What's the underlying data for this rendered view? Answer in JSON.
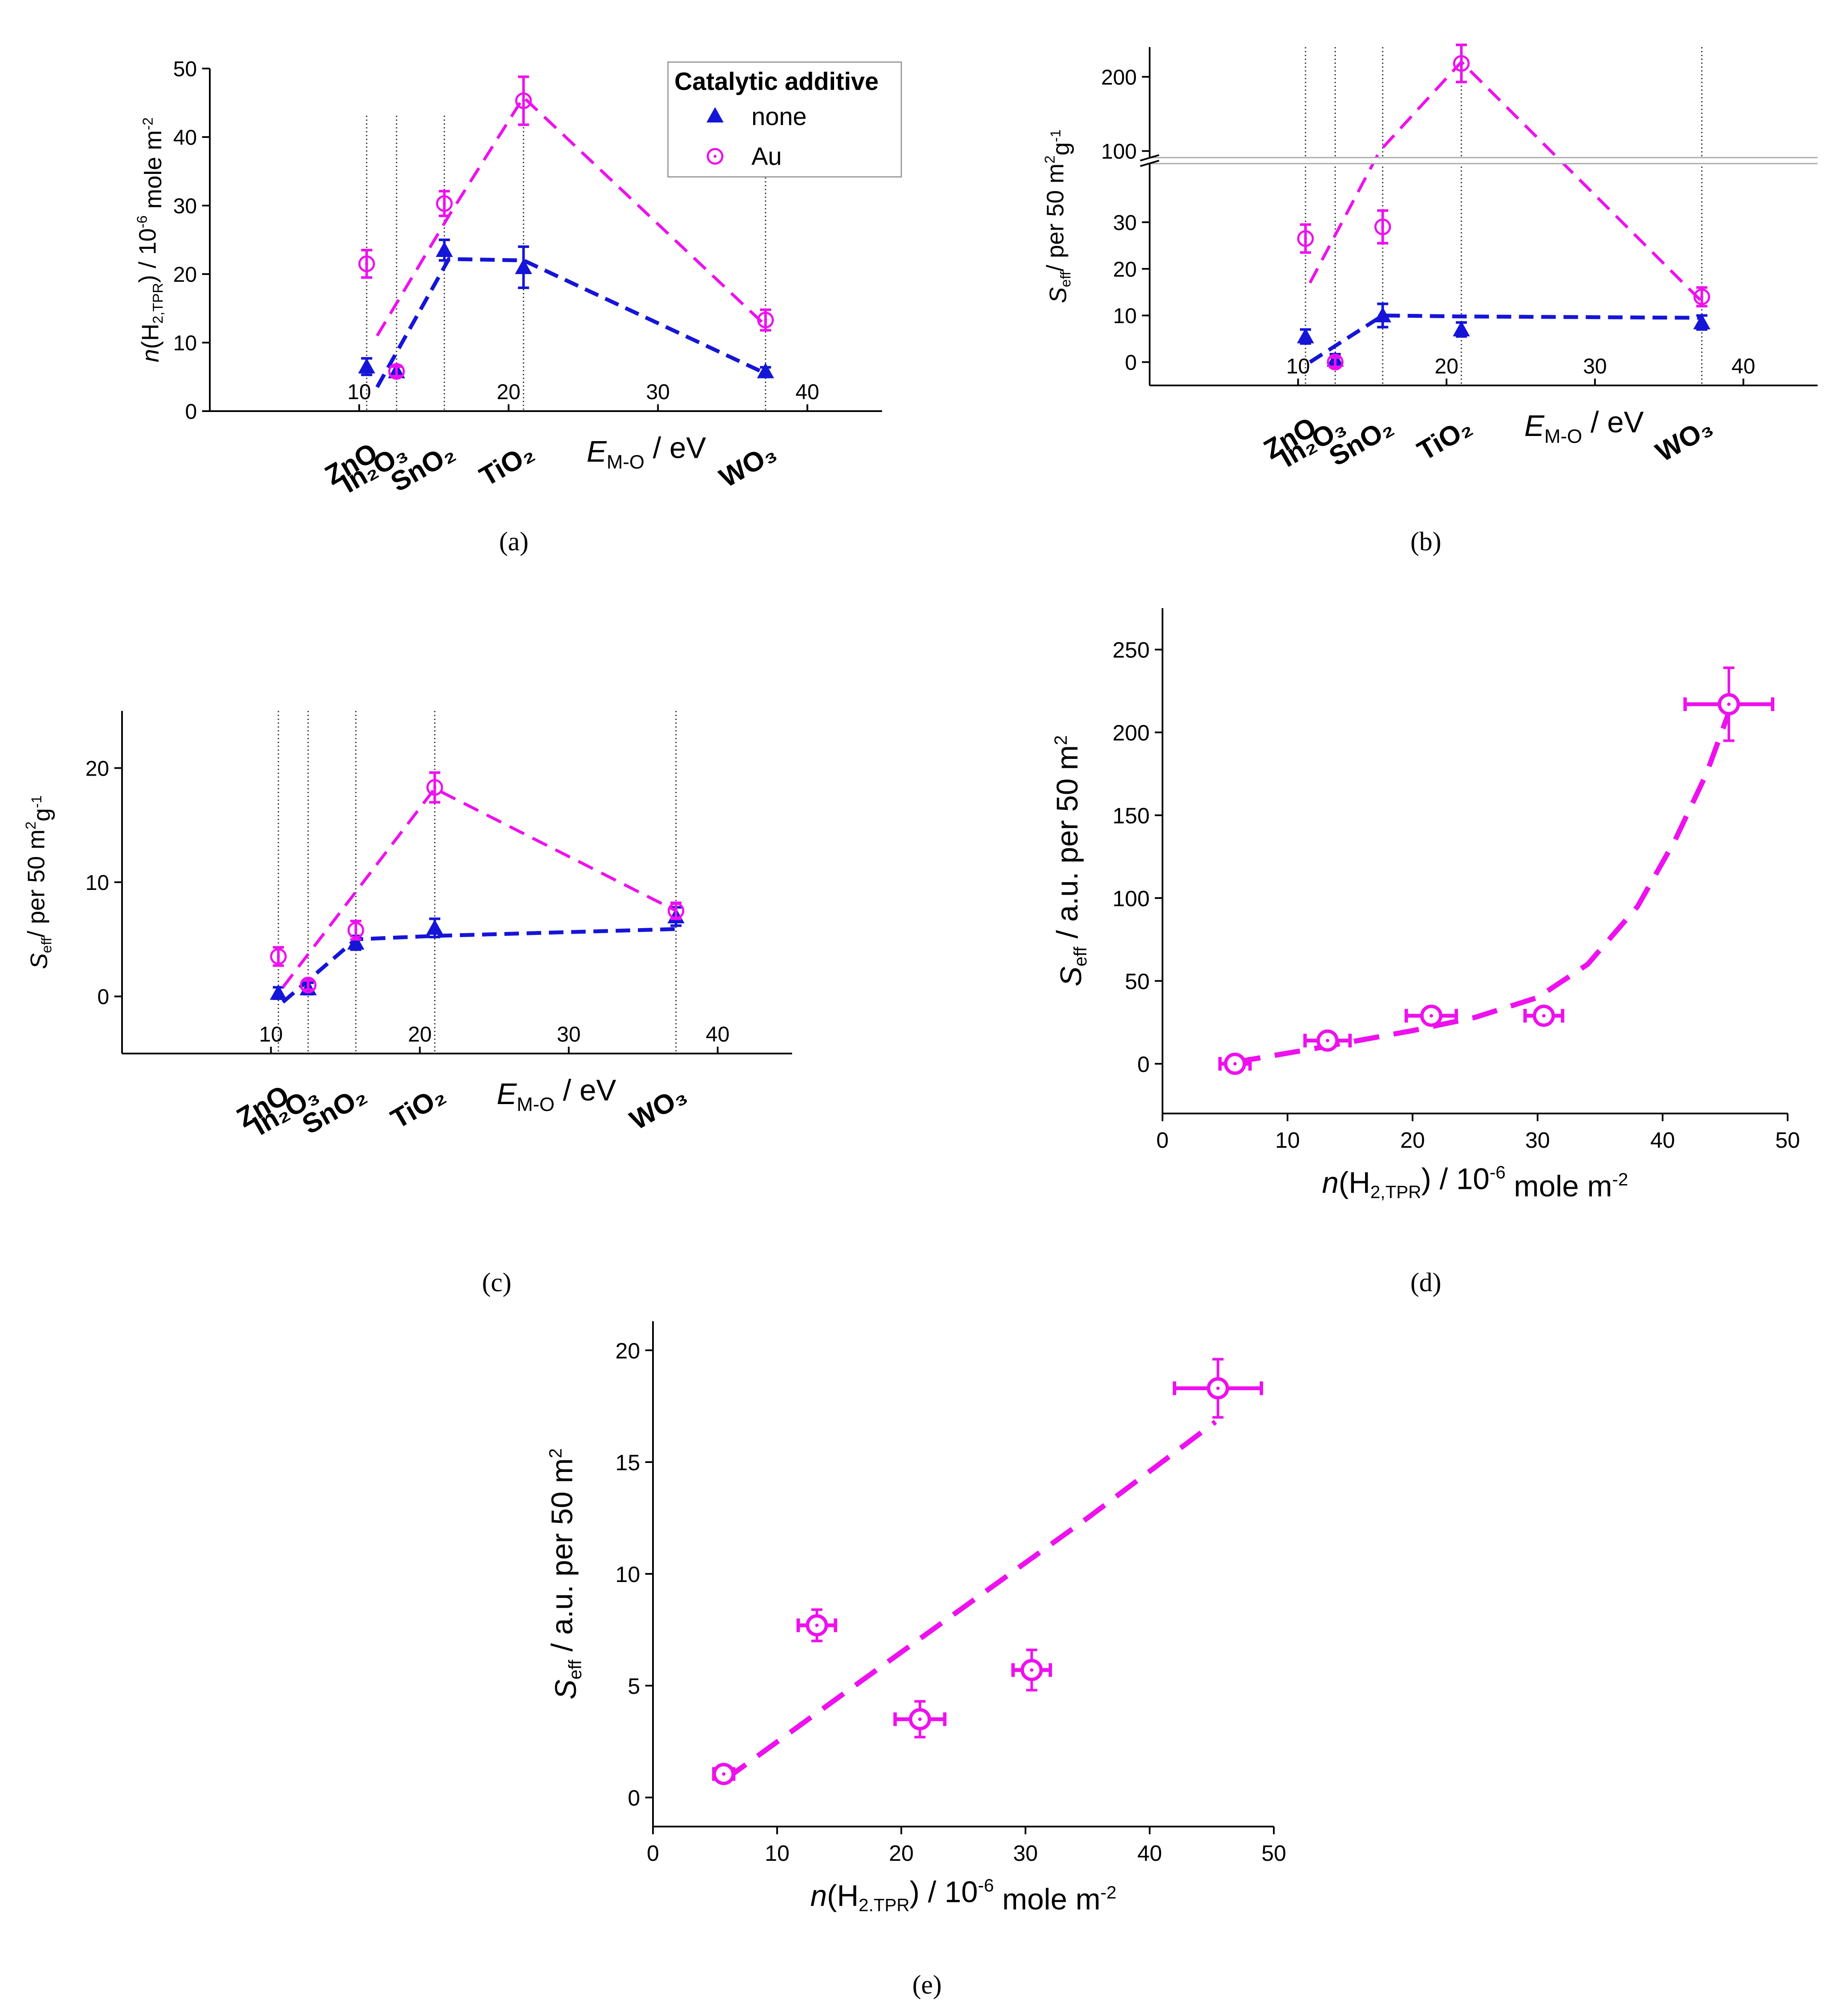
{
  "colors": {
    "none": "#1515d8",
    "au": "#ee10ee",
    "axis": "#000000",
    "guide": "#333333",
    "break": "#aaaaaa"
  },
  "legend": {
    "title": "Catalytic additive",
    "none": "none",
    "au": "Au"
  },
  "chart_data": [
    {
      "id": "a",
      "type": "scatter",
      "caption": "(a)",
      "xlim": [
        0,
        45
      ],
      "ylim": [
        0,
        50
      ],
      "xticks": [
        10,
        20,
        30,
        40
      ],
      "yticks": [
        0,
        10,
        20,
        30,
        40,
        50
      ],
      "xlabel_main": "E",
      "xlabel_sub": "M-O",
      "xlabel_rest": " / eV",
      "ylabel_parts": [
        "n",
        "(H",
        "2,TPR",
        ") / 10",
        "-6",
        " mole m",
        "-2"
      ],
      "oxides": [
        {
          "name": "ZnO",
          "x": 10.5
        },
        {
          "name": "In₂O₃",
          "x": 12.5
        },
        {
          "name": "SnO₂",
          "x": 15.7
        },
        {
          "name": "TiO₂",
          "x": 21.0
        },
        {
          "name": "WO₃",
          "x": 37.2
        }
      ],
      "series": [
        {
          "name": "none",
          "points": [
            [
              10.5,
              6.5,
              1.2
            ],
            [
              12.5,
              5.8,
              0.8
            ],
            [
              15.7,
              23.5,
              1.5
            ],
            [
              21.0,
              21.0,
              3.0
            ],
            [
              37.2,
              5.8,
              0.6
            ]
          ],
          "fit": [
            [
              11.2,
              3.5
            ],
            [
              16.0,
              22.2
            ],
            [
              21.0,
              22.0
            ],
            [
              37.2,
              5.5
            ]
          ]
        },
        {
          "name": "Au",
          "points": [
            [
              10.5,
              21.5,
              2.0
            ],
            [
              12.5,
              5.8,
              0.7
            ],
            [
              15.7,
              30.3,
              1.8
            ],
            [
              21.0,
              45.3,
              3.5
            ],
            [
              37.2,
              13.3,
              1.5
            ]
          ],
          "fit": [
            [
              11.2,
              11.0
            ],
            [
              16.0,
              28.5
            ],
            [
              21.0,
              45.8
            ],
            [
              37.2,
              12.5
            ]
          ]
        }
      ]
    },
    {
      "id": "b",
      "type": "scatter",
      "caption": "(b)",
      "broken_axis": true,
      "xlim": [
        0,
        45
      ],
      "xticks": [
        10,
        20,
        30,
        40
      ],
      "yticks_lower": [
        0,
        10,
        20,
        30
      ],
      "yticks_upper": [
        100,
        200
      ],
      "xlabel_main": "E",
      "xlabel_sub": "M-O",
      "xlabel_rest": " / eV",
      "ylabel_parts": [
        "S",
        "eff",
        "/ per 50 m",
        "2",
        "g",
        "-1"
      ],
      "oxides": [
        {
          "name": "ZnO",
          "x": 10.5
        },
        {
          "name": "In₂O₃",
          "x": 12.5
        },
        {
          "name": "SnO₂",
          "x": 15.7
        },
        {
          "name": "TiO₂",
          "x": 21.0
        },
        {
          "name": "WO₃",
          "x": 37.2
        }
      ],
      "series": [
        {
          "name": "none",
          "points": [
            [
              10.5,
              5.5,
              1.5
            ],
            [
              12.5,
              0.5,
              1.2
            ],
            [
              15.7,
              10.0,
              2.5
            ],
            [
              21.0,
              7.0,
              1.5
            ],
            [
              37.2,
              8.5,
              1.5
            ]
          ],
          "fit": [
            [
              10.8,
              0.0
            ],
            [
              15.7,
              10.0
            ],
            [
              21.0,
              9.8
            ],
            [
              37.2,
              9.5
            ]
          ]
        },
        {
          "name": "Au",
          "points": [
            [
              10.5,
              26.5,
              3.0
            ],
            [
              12.5,
              0.0,
              1.0
            ],
            [
              15.7,
              29.0,
              3.5
            ],
            [
              21.0,
              218.0,
              25.0
            ],
            [
              37.2,
              14.0,
              2.0
            ]
          ],
          "fit": [
            [
              10.8,
              17.0
            ],
            [
              15.5,
              100.0
            ],
            [
              21.0,
              220.0
            ],
            [
              37.2,
              13.0
            ]
          ]
        }
      ]
    },
    {
      "id": "c",
      "type": "scatter",
      "caption": "(c)",
      "xlim": [
        0,
        45
      ],
      "ylim": [
        -5,
        25
      ],
      "xticks": [
        10,
        20,
        30,
        40
      ],
      "yticks": [
        0,
        10,
        20
      ],
      "xlabel_main": "E",
      "xlabel_sub": "M-O",
      "xlabel_rest": " / eV",
      "ylabel_parts": [
        "S",
        "eff",
        "/ per 50 m",
        "2",
        "g",
        "-1"
      ],
      "oxides": [
        {
          "name": "ZnO",
          "x": 10.5
        },
        {
          "name": "In₂O₃",
          "x": 12.5
        },
        {
          "name": "SnO₂",
          "x": 15.7
        },
        {
          "name": "TiO₂",
          "x": 21.0
        },
        {
          "name": "WO₃",
          "x": 37.2
        }
      ],
      "series": [
        {
          "name": "none",
          "points": [
            [
              10.5,
              0.3,
              0.5
            ],
            [
              12.5,
              0.7,
              0.5
            ],
            [
              15.7,
              4.7,
              0.6
            ],
            [
              21.0,
              6.0,
              0.8
            ],
            [
              37.2,
              7.0,
              0.8
            ]
          ],
          "fit": [
            [
              10.8,
              -0.5
            ],
            [
              15.7,
              5.0
            ],
            [
              21.0,
              5.3
            ],
            [
              37.2,
              5.9
            ]
          ]
        },
        {
          "name": "Au",
          "points": [
            [
              10.5,
              3.5,
              0.8
            ],
            [
              12.5,
              1.0,
              0.4
            ],
            [
              15.7,
              5.8,
              0.8
            ],
            [
              21.0,
              18.3,
              1.3
            ],
            [
              37.2,
              7.5,
              0.7
            ]
          ],
          "fit": [
            [
              10.8,
              0.8
            ],
            [
              21.0,
              18.2
            ],
            [
              37.2,
              7.5
            ]
          ]
        }
      ]
    },
    {
      "id": "d",
      "type": "scatter",
      "caption": "(d)",
      "xlim": [
        0,
        50
      ],
      "ylim": [
        -30,
        275
      ],
      "xticks": [
        0,
        10,
        20,
        30,
        40,
        50
      ],
      "yticks": [
        0,
        50,
        100,
        150,
        200,
        250
      ],
      "ylabel_parts": [
        "S",
        "eff",
        " / a.u. per 50 m",
        "2"
      ],
      "xlabel_parts": [
        "n",
        "(H",
        "2,TPR",
        ") / 10",
        "-6",
        " mole m",
        "-2"
      ],
      "series": [
        {
          "name": "Au",
          "points": [
            [
              5.8,
              0.0,
              1.2,
              5.0
            ],
            [
              13.2,
              14.0,
              1.8,
              5.0
            ],
            [
              21.5,
              29.0,
              2.0,
              5.0
            ],
            [
              30.5,
              29.0,
              1.5,
              5.0
            ],
            [
              45.3,
              217.0,
              3.5,
              22.0
            ]
          ],
          "fit": [
            [
              5.8,
              1.0
            ],
            [
              12.0,
              9.0
            ],
            [
              20.0,
              20.0
            ],
            [
              25.0,
              28.0
            ],
            [
              30.0,
              40.0
            ],
            [
              34.0,
              60.0
            ],
            [
              38.0,
              95.0
            ],
            [
              41.0,
              135.0
            ],
            [
              43.5,
              175.0
            ],
            [
              45.3,
              212.0
            ]
          ]
        }
      ]
    },
    {
      "id": "e",
      "type": "scatter",
      "caption": "(e)",
      "xlim": [
        0,
        50
      ],
      "ylim": [
        -1.3,
        21.3
      ],
      "xticks": [
        0,
        10,
        20,
        30,
        40,
        50
      ],
      "yticks": [
        0,
        5,
        10,
        15,
        20
      ],
      "ylabel_parts": [
        "S",
        "eff",
        " / a.u. per 50 m",
        "2"
      ],
      "xlabel_parts": [
        "n",
        "(H",
        "2.TPR",
        ") / 10",
        "-6",
        " mole m",
        "-2"
      ],
      "series": [
        {
          "name": "Au",
          "points": [
            [
              5.7,
              1.05,
              0.8,
              0.3
            ],
            [
              13.2,
              7.7,
              1.5,
              0.7
            ],
            [
              21.5,
              3.5,
              2.0,
              0.8
            ],
            [
              30.5,
              5.7,
              1.5,
              0.9
            ],
            [
              45.5,
              18.3,
              3.5,
              1.3
            ]
          ],
          "fit": [
            [
              5.8,
              0.8
            ],
            [
              15.0,
              4.5
            ],
            [
              25.0,
              8.5
            ],
            [
              35.0,
              12.5
            ],
            [
              45.3,
              16.8
            ]
          ]
        }
      ]
    }
  ]
}
